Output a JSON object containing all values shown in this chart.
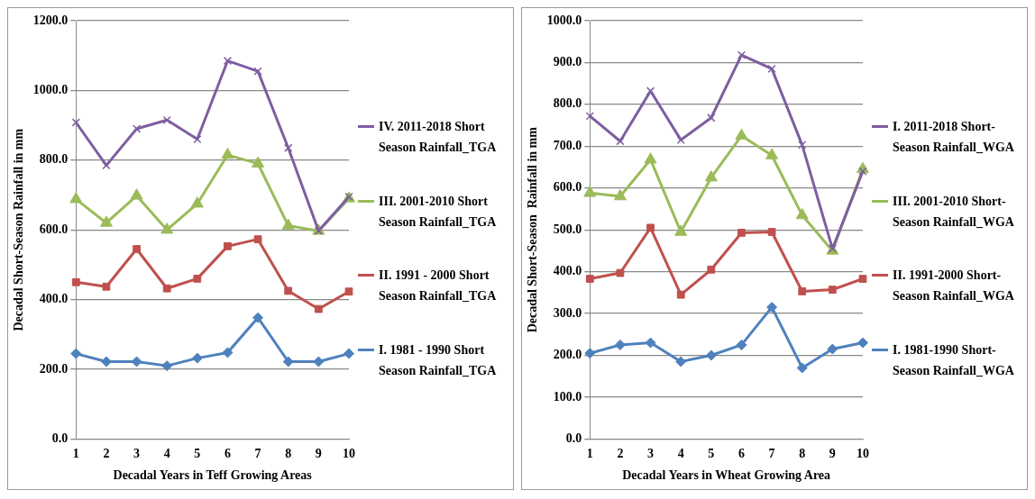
{
  "chart_data": [
    {
      "type": "line",
      "xlabel": "Decadal Years in Teff Growing Areas",
      "ylabel": "Decadal Short-Season Rainfall in mm",
      "categories": [
        "1",
        "2",
        "3",
        "4",
        "5",
        "6",
        "7",
        "8",
        "9",
        "10"
      ],
      "ylim": [
        0,
        1200
      ],
      "yticks": [
        {
          "value": 0,
          "label": "0.0"
        },
        {
          "value": 200,
          "label": "200.0"
        },
        {
          "value": 400,
          "label": "400.0"
        },
        {
          "value": 600,
          "label": "600.0"
        },
        {
          "value": 800,
          "label": "800.0"
        },
        {
          "value": 1000,
          "label": "1000.0"
        },
        {
          "value": 1200,
          "label": "1200.0"
        }
      ],
      "grid": "y",
      "legend": "right",
      "series": [
        {
          "name": "IV. 2011-2018 Short Season Rainfall_TGA",
          "color": "#7d5fa0",
          "marker": "cross",
          "values": [
            908,
            785,
            890,
            915,
            860,
            1085,
            1055,
            835,
            597,
            695
          ]
        },
        {
          "name": "III. 2001-2010 Short Season Rainfall_TGA",
          "color": "#9bbb59",
          "marker": "triangle",
          "values": [
            688,
            620,
            698,
            600,
            675,
            815,
            790,
            612,
            597,
            690
          ]
        },
        {
          "name": "II. 1991 - 2000 Short Season Rainfall_TGA",
          "color": "#c0504d",
          "marker": "square",
          "values": [
            450,
            437,
            545,
            432,
            460,
            553,
            573,
            425,
            373,
            423
          ]
        },
        {
          "name": "I. 1981 - 1990 Short Season Rainfall_TGA",
          "color": "#4f81bd",
          "marker": "diamond",
          "values": [
            245,
            222,
            222,
            210,
            232,
            248,
            348,
            222,
            222,
            245
          ]
        }
      ]
    },
    {
      "type": "line",
      "xlabel": "Decadal Years in Wheat Growing Area",
      "ylabel": "Decadal Short-Season  Rainfall in mm",
      "categories": [
        "1",
        "2",
        "3",
        "4",
        "5",
        "6",
        "7",
        "8",
        "9",
        "10"
      ],
      "ylim": [
        0,
        1000
      ],
      "yticks": [
        {
          "value": 0,
          "label": "0.0"
        },
        {
          "value": 100,
          "label": "100.0"
        },
        {
          "value": 200,
          "label": "200.0"
        },
        {
          "value": 300,
          "label": "300.0"
        },
        {
          "value": 400,
          "label": "400.0"
        },
        {
          "value": 500,
          "label": "500.0"
        },
        {
          "value": 600,
          "label": "600.0"
        },
        {
          "value": 700,
          "label": "700.0"
        },
        {
          "value": 800,
          "label": "800.0"
        },
        {
          "value": 900,
          "label": "900.0"
        },
        {
          "value": 1000,
          "label": "1000.0"
        }
      ],
      "grid": "y",
      "legend": "right",
      "series": [
        {
          "name": "I. 2011-2018 Short-Season Rainfall_WGA",
          "color": "#7d5fa0",
          "marker": "cross",
          "values": [
            772,
            712,
            832,
            715,
            768,
            918,
            885,
            703,
            455,
            640
          ]
        },
        {
          "name": "III. 2001-2010 Short-Season Rainfall_WGA",
          "color": "#9bbb59",
          "marker": "triangle",
          "values": [
            588,
            580,
            668,
            495,
            625,
            725,
            678,
            535,
            450,
            645
          ]
        },
        {
          "name": "II. 1991-2000 Short-Season Rainfall_WGA",
          "color": "#c0504d",
          "marker": "square",
          "values": [
            383,
            397,
            505,
            345,
            405,
            493,
            495,
            353,
            357,
            383
          ]
        },
        {
          "name": "I. 1981-1990 Short-Season Rainfall_WGA",
          "color": "#4f81bd",
          "marker": "diamond",
          "values": [
            205,
            225,
            230,
            185,
            200,
            225,
            315,
            170,
            215,
            230
          ]
        }
      ]
    }
  ]
}
